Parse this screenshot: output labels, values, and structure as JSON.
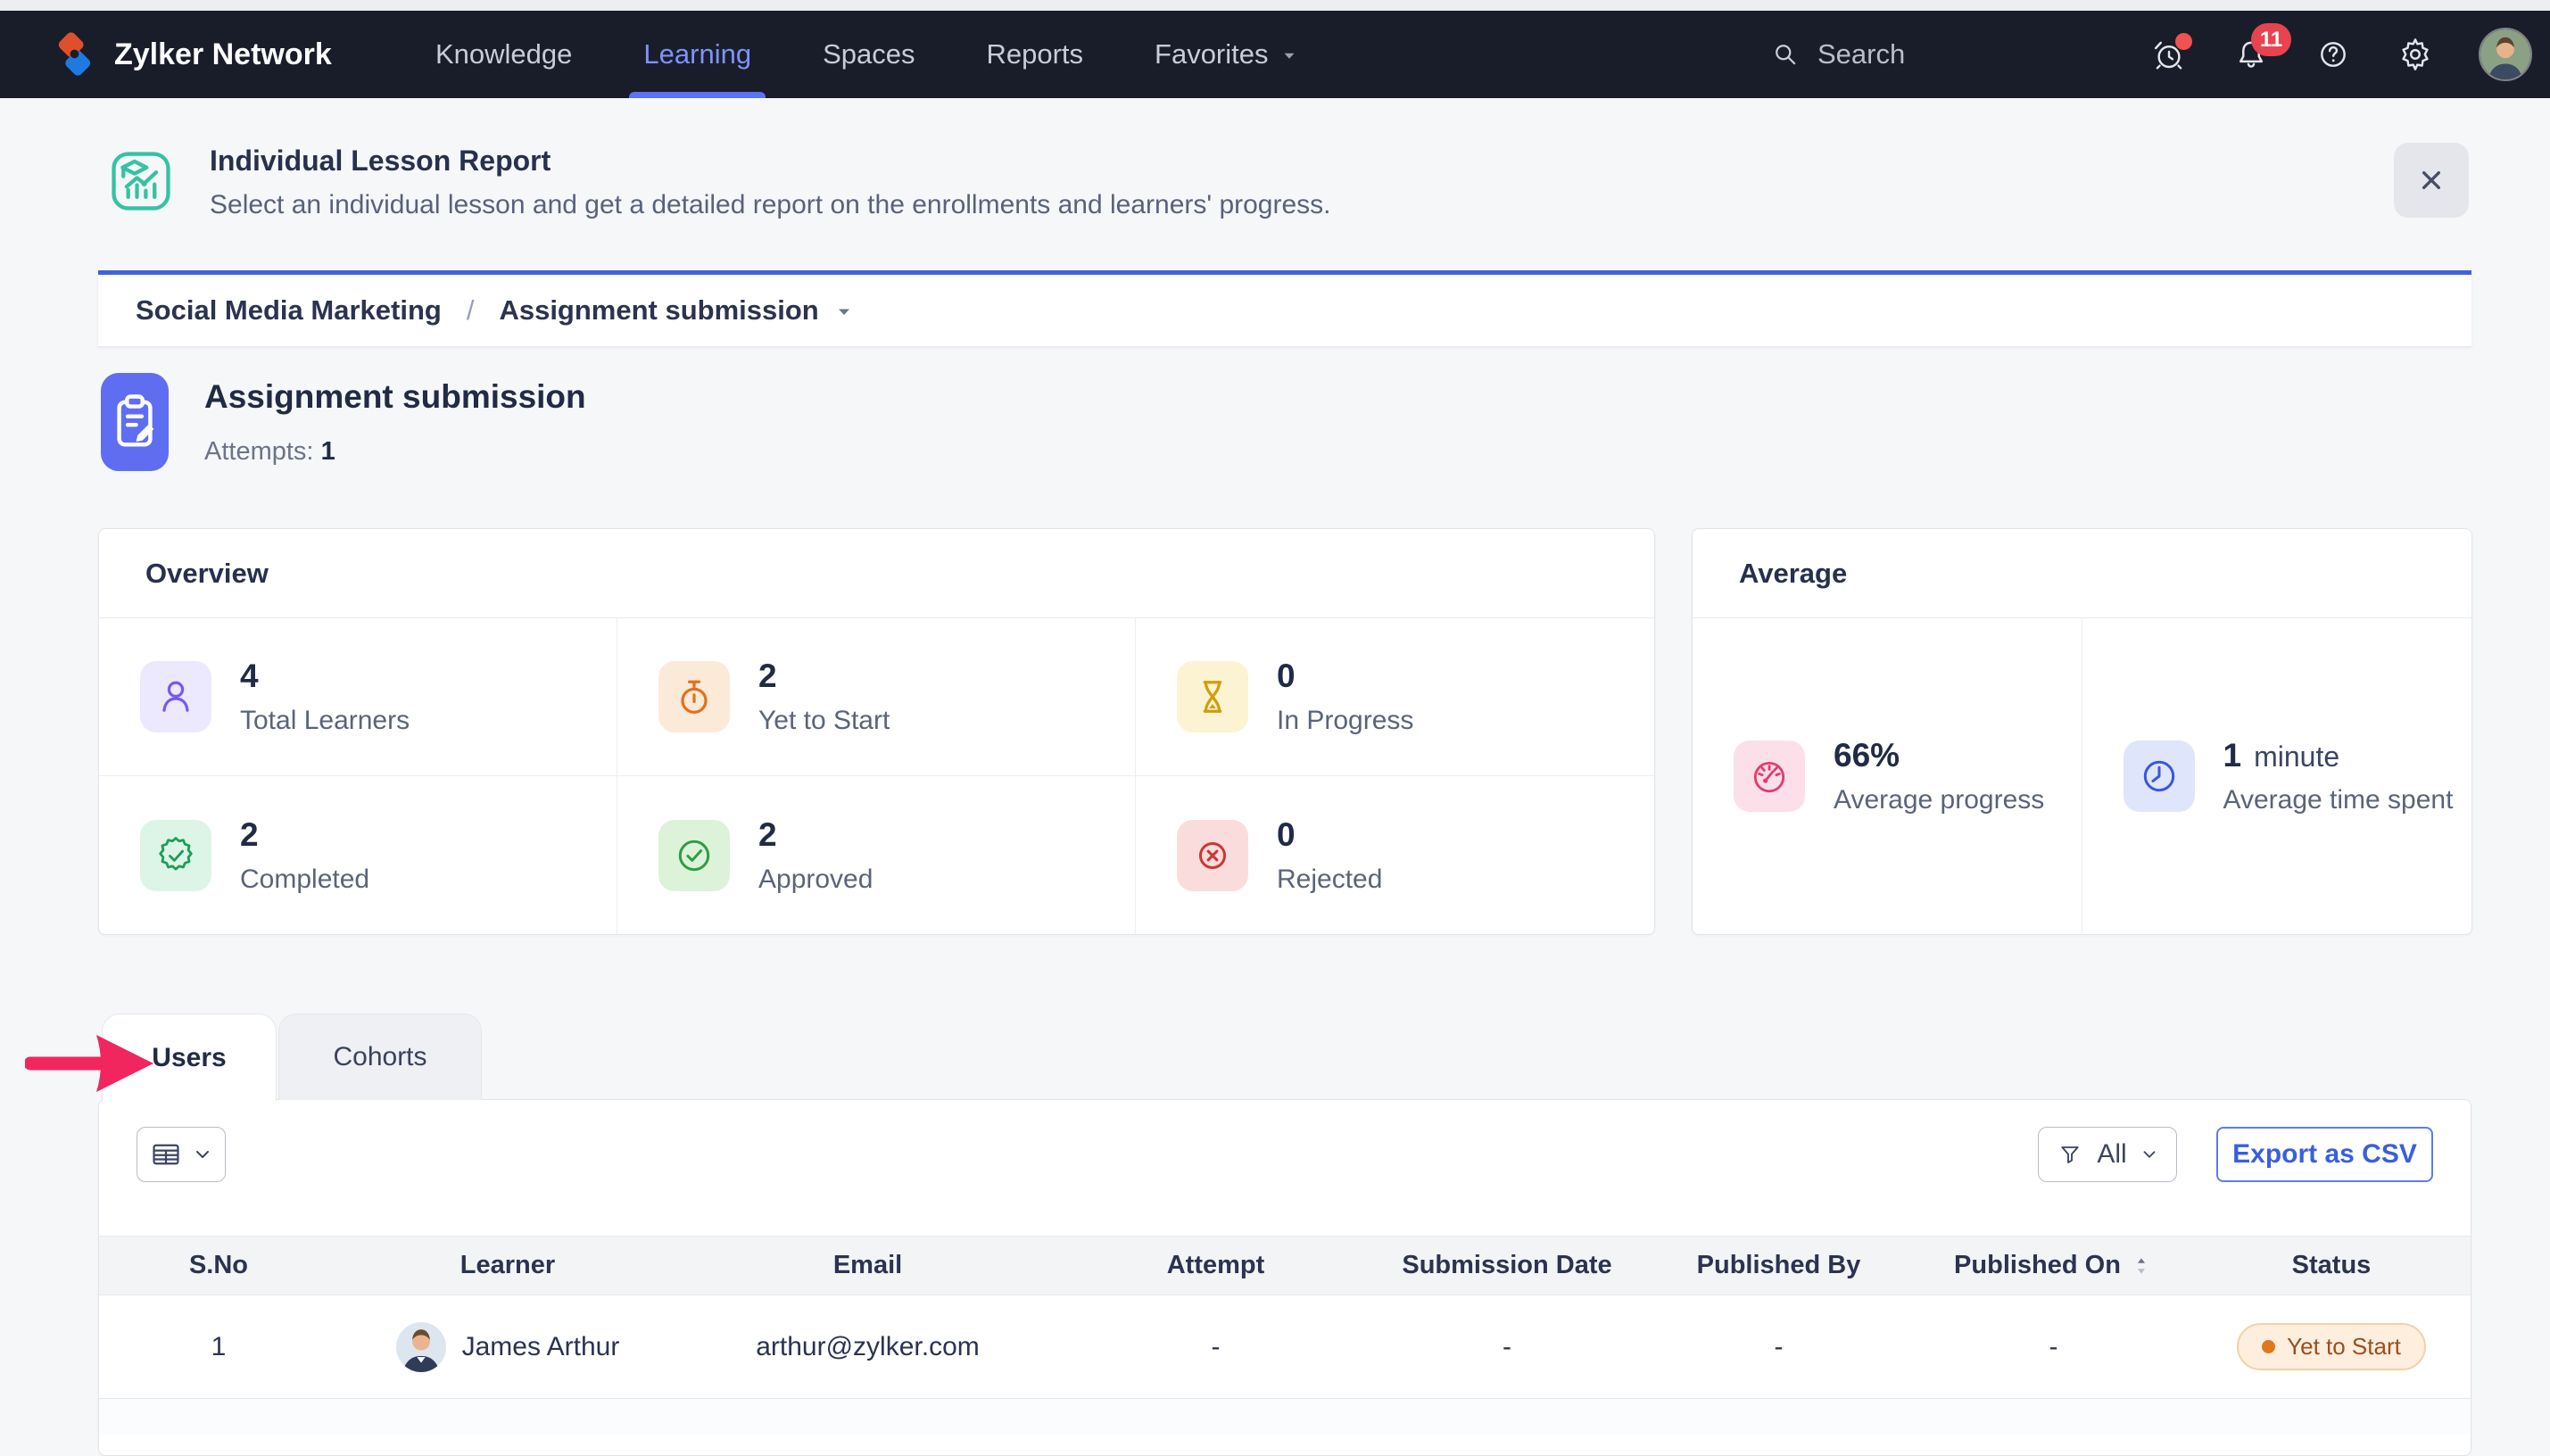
{
  "navbar": {
    "brand": "Zylker Network",
    "items": [
      {
        "label": "Knowledge",
        "active": false,
        "caret": false
      },
      {
        "label": "Learning",
        "active": true,
        "caret": false
      },
      {
        "label": "Spaces",
        "active": false,
        "caret": false
      },
      {
        "label": "Reports",
        "active": false,
        "caret": false
      },
      {
        "label": "Favorites",
        "active": false,
        "caret": true
      }
    ],
    "search_label": "Search",
    "notification_count": "11",
    "right_icons": [
      "alarm-icon",
      "bell-icon",
      "help-icon",
      "settings-icon"
    ]
  },
  "header": {
    "title": "Individual Lesson Report",
    "description": "Select an individual lesson and get a detailed report on the enrollments and learners' progress.",
    "icon": "lesson-report-icon",
    "icon_color": "#35c2a4",
    "close_icon": "close-icon"
  },
  "breadcrumb": {
    "course": "Social Media Marketing",
    "separator": "/",
    "lesson": "Assignment submission"
  },
  "lesson": {
    "title": "Assignment submission",
    "attempts_label": "Attempts:",
    "attempts_value": "1",
    "icon": "clipboard-icon",
    "icon_bg": "#5f6ef1"
  },
  "overview": {
    "title": "Overview",
    "stats": [
      {
        "value": "4",
        "label": "Total Learners",
        "icon": "user-icon",
        "color": "#7a58f0",
        "bg": "#ece8fd"
      },
      {
        "value": "2",
        "label": "Yet to Start",
        "icon": "stopwatch-icon",
        "color": "#e2711d",
        "bg": "#fcead9"
      },
      {
        "value": "0",
        "label": "In Progress",
        "icon": "hourglass-icon",
        "color": "#d19e08",
        "bg": "#fcf3d2"
      },
      {
        "value": "2",
        "label": "Completed",
        "icon": "badge-check-icon",
        "color": "#1f9d57",
        "bg": "#dcf5e6"
      },
      {
        "value": "2",
        "label": "Approved",
        "icon": "circle-check-icon",
        "color": "#2f9e44",
        "bg": "#dcf3da"
      },
      {
        "value": "0",
        "label": "Rejected",
        "icon": "circle-x-icon",
        "color": "#cc3636",
        "bg": "#fbdcdc"
      }
    ]
  },
  "average": {
    "title": "Average",
    "stats": [
      {
        "value": "66%",
        "suffix": "",
        "label": "Average progress",
        "icon": "gauge-icon",
        "color": "#e23a6e",
        "bg": "#fcdfe9"
      },
      {
        "value": "1",
        "suffix": "minute",
        "label": "Average time spent",
        "icon": "clock-icon",
        "color": "#3a57dd",
        "bg": "#dfe5fa"
      }
    ]
  },
  "tabs": [
    {
      "label": "Users",
      "active": true
    },
    {
      "label": "Cohorts",
      "active": false
    }
  ],
  "annotation": {
    "type": "arrow",
    "points_to": "Users tab",
    "color": "#f1265e"
  },
  "toolbar": {
    "columns_icon": "table-columns-icon",
    "filter_icon": "filter-icon",
    "filter_label": "All",
    "export_label": "Export as CSV"
  },
  "table": {
    "columns": [
      "S.No",
      "Learner",
      "Email",
      "Attempt",
      "Submission Date",
      "Published By",
      "Published On",
      "Status"
    ],
    "sortable_column": "Published On",
    "rows": [
      {
        "sno": "1",
        "learner": "James Arthur",
        "avatar": "learner-photo",
        "email": "arthur@zylker.com",
        "attempt": "-",
        "submission_date": "-",
        "published_by": "-",
        "published_on": "-",
        "status": {
          "label": "Yet to Start",
          "bg": "#fdeedd",
          "border": "#f2d2a8",
          "text": "#9a4f1e",
          "dot": "#e0771c"
        }
      }
    ]
  }
}
